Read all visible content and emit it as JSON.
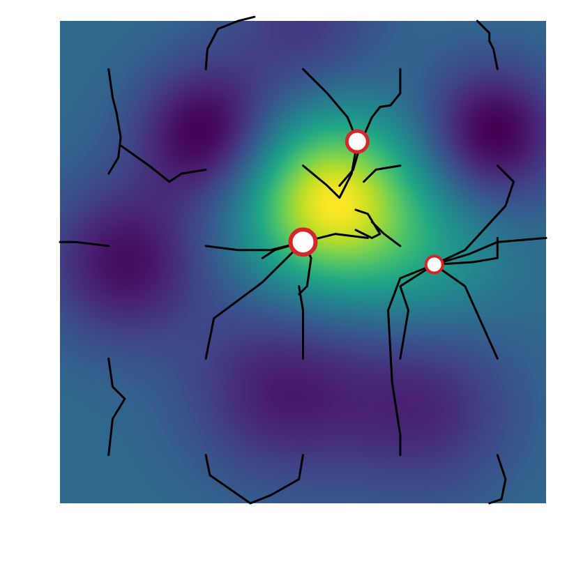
{
  "chart_data": {
    "type": "heatmap",
    "title": "",
    "xlabel": "",
    "ylabel": "",
    "axes_visible": false,
    "grid": false,
    "xlim": [
      -3,
      3
    ],
    "ylim": [
      -3,
      3
    ],
    "colormap": "viridis",
    "colors": {
      "trajectory_line": "#000000",
      "marker_edge": "#d62728",
      "marker_face": "#ffffff"
    },
    "field_components": [
      {
        "type": "gaussian",
        "x": 0.35,
        "y": 0.75,
        "amplitude": 1.25,
        "sigma": 0.75
      },
      {
        "type": "gaussian",
        "x": -1.2,
        "y": 1.6,
        "amplitude": -0.7,
        "sigma": 0.6
      },
      {
        "type": "gaussian",
        "x": 2.35,
        "y": 1.6,
        "amplitude": -0.7,
        "sigma": 0.6
      },
      {
        "type": "gaussian",
        "x": -2.2,
        "y": 0.0,
        "amplitude": -0.6,
        "sigma": 0.7
      },
      {
        "type": "gaussian",
        "x": -0.3,
        "y": -1.6,
        "amplitude": -0.5,
        "sigma": 0.8
      },
      {
        "type": "gaussian",
        "x": 1.5,
        "y": -1.8,
        "amplitude": -0.45,
        "sigma": 0.8
      },
      {
        "type": "gaussian",
        "x": 0.0,
        "y": 2.9,
        "amplitude": -0.35,
        "sigma": 0.7
      },
      {
        "type": "gaussian",
        "x": 1.6,
        "y": 0.0,
        "amplitude": 0.3,
        "sigma": 0.7
      }
    ],
    "optima": [
      {
        "x": 0.67,
        "y": 1.5,
        "marker_size": "medium"
      },
      {
        "x": 0.0,
        "y": 0.25,
        "marker_size": "large"
      },
      {
        "x": 1.62,
        "y": -0.03,
        "marker_size": "small"
      }
    ],
    "trajectories": [
      {
        "points": [
          [
            -2.4,
            2.4
          ],
          [
            -2.35,
            2.05
          ],
          [
            -2.3,
            1.85
          ],
          [
            -2.25,
            1.55
          ],
          [
            -2.28,
            1.3
          ],
          [
            -2.4,
            1.1
          ]
        ]
      },
      {
        "points": [
          [
            -2.25,
            1.45
          ],
          [
            -1.9,
            1.2
          ],
          [
            -1.65,
            1.0
          ],
          [
            -1.5,
            1.1
          ],
          [
            -1.2,
            1.15
          ]
        ]
      },
      {
        "points": [
          [
            -1.2,
            2.4
          ],
          [
            -1.18,
            2.65
          ],
          [
            -1.05,
            2.9
          ],
          [
            -0.8,
            3.0
          ],
          [
            -0.6,
            3.05
          ]
        ]
      },
      {
        "points": [
          [
            0.0,
            2.4
          ],
          [
            0.3,
            2.1
          ],
          [
            0.55,
            1.8
          ],
          [
            0.65,
            1.55
          ],
          [
            0.67,
            1.5
          ]
        ]
      },
      {
        "points": [
          [
            1.2,
            2.4
          ],
          [
            1.2,
            2.1
          ],
          [
            1.08,
            1.95
          ],
          [
            0.95,
            1.93
          ],
          [
            0.85,
            1.8
          ],
          [
            0.72,
            1.5
          ],
          [
            0.62,
            1.15
          ],
          [
            0.45,
            0.95
          ]
        ]
      },
      {
        "points": [
          [
            0.0,
            1.2
          ],
          [
            0.3,
            0.95
          ],
          [
            0.45,
            0.8
          ],
          [
            0.6,
            1.1
          ],
          [
            0.67,
            1.5
          ]
        ]
      },
      {
        "points": [
          [
            1.2,
            1.2
          ],
          [
            0.9,
            1.15
          ],
          [
            0.75,
            1.0
          ]
        ]
      },
      {
        "points": [
          [
            0.65,
            0.4
          ],
          [
            0.85,
            0.3
          ],
          [
            0.95,
            0.35
          ],
          [
            0.8,
            0.6
          ],
          [
            0.65,
            0.65
          ]
        ]
      },
      {
        "points": [
          [
            0.85,
            0.5
          ],
          [
            1.0,
            0.35
          ],
          [
            1.2,
            0.2
          ]
        ]
      },
      {
        "points": [
          [
            -1.2,
            0.2
          ],
          [
            -0.8,
            0.15
          ],
          [
            -0.4,
            0.15
          ],
          [
            0.0,
            0.25
          ]
        ]
      },
      {
        "points": [
          [
            -0.5,
            0.05
          ],
          [
            -0.35,
            0.15
          ],
          [
            0.0,
            0.25
          ],
          [
            0.4,
            0.35
          ],
          [
            0.8,
            0.3
          ]
        ]
      },
      {
        "points": [
          [
            0.0,
            0.25
          ],
          [
            0.1,
            0.05
          ],
          [
            0.05,
            -0.3
          ],
          [
            -0.05,
            -0.4
          ]
        ]
      },
      {
        "points": [
          [
            0.0,
            -1.2
          ],
          [
            0.0,
            -0.6
          ],
          [
            -0.05,
            -0.3
          ]
        ]
      },
      {
        "points": [
          [
            -1.2,
            -1.2
          ],
          [
            -1.1,
            -0.7
          ],
          [
            -0.5,
            -0.25
          ],
          [
            0.0,
            0.25
          ]
        ]
      },
      {
        "points": [
          [
            2.4,
            1.2
          ],
          [
            2.6,
            1.0
          ],
          [
            2.5,
            0.7
          ],
          [
            2.0,
            0.15
          ],
          [
            1.62,
            -0.03
          ]
        ]
      },
      {
        "points": [
          [
            3.0,
            0.3
          ],
          [
            2.4,
            0.25
          ],
          [
            2.05,
            0.1
          ],
          [
            1.62,
            -0.03
          ]
        ]
      },
      {
        "points": [
          [
            1.62,
            -0.03
          ],
          [
            2.1,
            0.0
          ],
          [
            2.4,
            0.05
          ],
          [
            2.4,
            0.3
          ]
        ]
      },
      {
        "points": [
          [
            1.62,
            -0.03
          ],
          [
            2.0,
            -0.3
          ],
          [
            2.4,
            -1.2
          ]
        ]
      },
      {
        "points": [
          [
            1.2,
            -1.2
          ],
          [
            1.3,
            -0.6
          ],
          [
            1.2,
            -0.3
          ],
          [
            1.62,
            -0.03
          ]
        ]
      },
      {
        "points": [
          [
            1.62,
            -0.03
          ],
          [
            1.2,
            -0.2
          ],
          [
            1.05,
            -0.6
          ],
          [
            1.1,
            -1.5
          ],
          [
            1.2,
            -2.15
          ],
          [
            1.2,
            -2.4
          ]
        ]
      },
      {
        "points": [
          [
            -2.4,
            -1.2
          ],
          [
            -2.35,
            -1.55
          ],
          [
            -2.2,
            -1.7
          ],
          [
            -2.35,
            -1.95
          ],
          [
            -2.4,
            -2.4
          ]
        ]
      },
      {
        "points": [
          [
            -1.2,
            -2.4
          ],
          [
            -1.15,
            -2.65
          ],
          [
            -0.65,
            -3.0
          ],
          [
            -0.4,
            -2.9
          ],
          [
            -0.05,
            -2.7
          ],
          [
            0.0,
            -2.4
          ]
        ]
      },
      {
        "points": [
          [
            2.4,
            -2.4
          ],
          [
            2.5,
            -2.7
          ],
          [
            2.45,
            -2.95
          ],
          [
            2.3,
            -3.0
          ]
        ]
      },
      {
        "points": [
          [
            2.4,
            2.4
          ],
          [
            2.35,
            2.65
          ],
          [
            2.3,
            2.75
          ],
          [
            2.3,
            2.85
          ],
          [
            2.15,
            3.0
          ]
        ]
      },
      {
        "points": [
          [
            -3.0,
            0.25
          ],
          [
            -2.8,
            0.25
          ],
          [
            -2.4,
            0.2
          ]
        ]
      }
    ]
  }
}
